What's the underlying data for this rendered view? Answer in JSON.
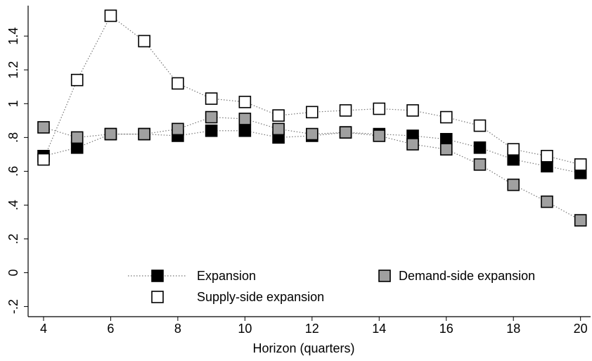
{
  "chart_data": {
    "type": "line",
    "x_label": "Horizon (quarters)",
    "x": [
      4,
      5,
      6,
      7,
      8,
      9,
      10,
      11,
      12,
      13,
      14,
      15,
      16,
      17,
      18,
      19,
      20
    ],
    "series": [
      {
        "name": "Expansion",
        "color": "#000000",
        "values": [
          0.69,
          0.74,
          0.82,
          0.82,
          0.81,
          0.84,
          0.84,
          0.8,
          0.81,
          0.83,
          0.82,
          0.81,
          0.79,
          0.74,
          0.67,
          0.63,
          0.59
        ]
      },
      {
        "name": "Demand-side expansion",
        "color": "#a0a0a0",
        "values": [
          0.86,
          0.8,
          0.82,
          0.82,
          0.85,
          0.92,
          0.91,
          0.85,
          0.82,
          0.83,
          0.81,
          0.76,
          0.73,
          0.64,
          0.52,
          0.42,
          0.31
        ]
      },
      {
        "name": "Supply-side expansion",
        "color": "#ffffff",
        "values": [
          0.67,
          1.14,
          1.52,
          1.37,
          1.12,
          1.03,
          1.01,
          0.93,
          0.95,
          0.96,
          0.97,
          0.96,
          0.92,
          0.87,
          0.73,
          0.69,
          0.64
        ]
      }
    ],
    "xlim": [
      3.54,
      20.3
    ],
    "ylim": [
      -0.26,
      1.58
    ],
    "xticks": [
      4,
      6,
      8,
      10,
      12,
      14,
      16,
      18,
      20
    ],
    "yticks": [
      {
        "value": -0.2,
        "label": "-.2"
      },
      0,
      {
        "value": 0.2,
        "label": ".2"
      },
      {
        "value": 0.4,
        "label": ".4"
      },
      {
        "value": 0.6,
        "label": ".6"
      },
      {
        "value": 0.8,
        "label": ".8"
      },
      1,
      {
        "value": 1.2,
        "label": "1.2"
      },
      {
        "value": 1.4,
        "label": "1.4"
      }
    ],
    "grid": false,
    "legend": "bottom"
  }
}
